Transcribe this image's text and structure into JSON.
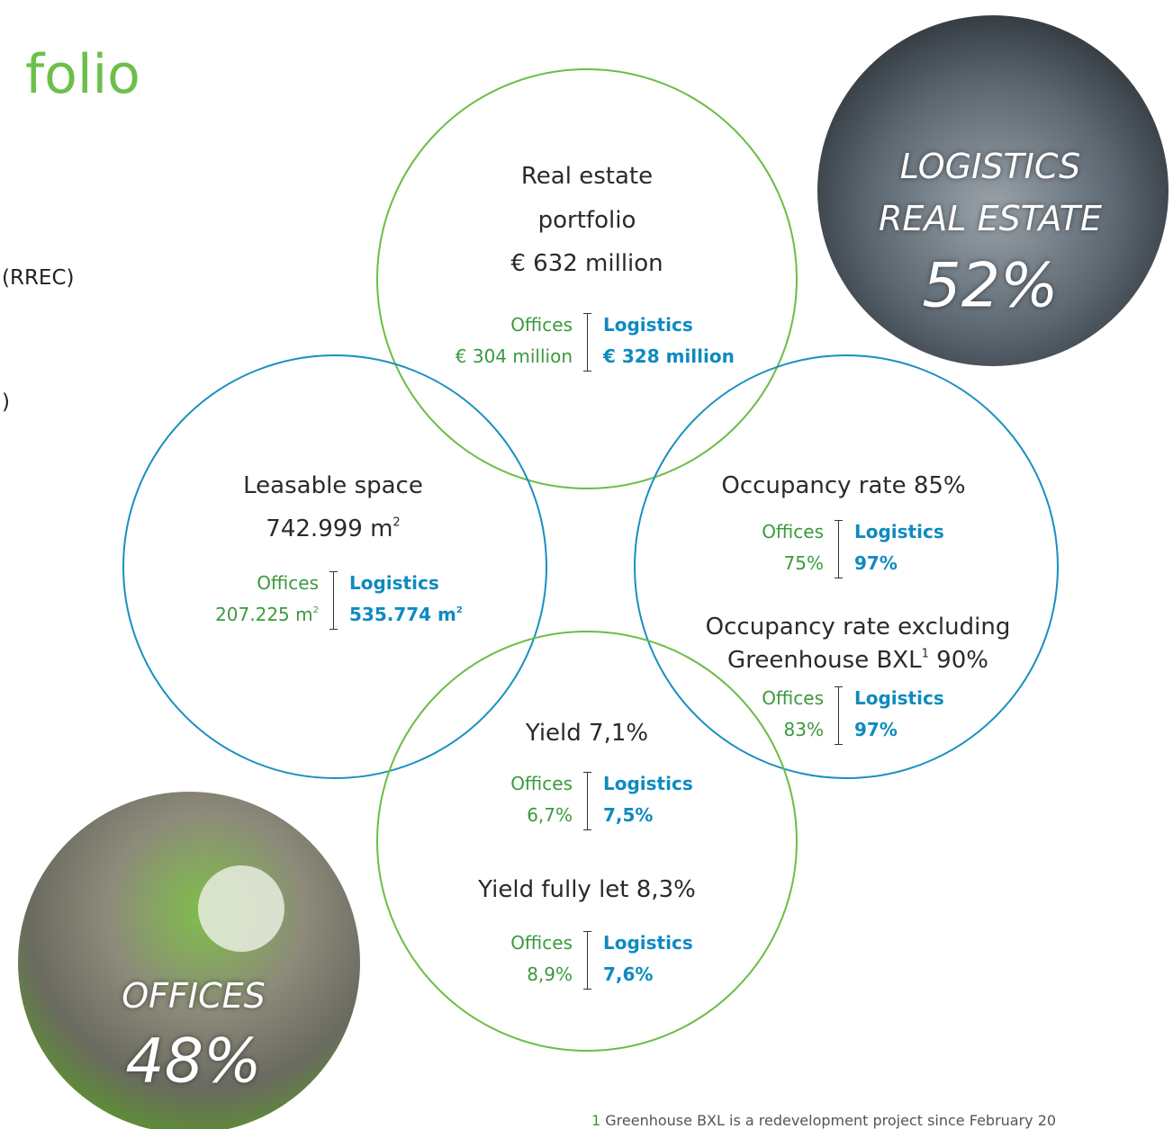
{
  "header": {
    "title": "folio",
    "lines": [
      "(RREC)",
      ")"
    ]
  },
  "photos": [
    {
      "lines": [
        "LOGISTICS",
        "REAL ESTATE"
      ],
      "share": "52%"
    },
    {
      "lines": [
        "OFFICES"
      ],
      "share": "48%"
    }
  ],
  "blocks": [
    {
      "lines": [
        {
          "text": "Real estate"
        },
        {
          "text": "portfolio"
        },
        {
          "text": "€ 632 million"
        }
      ],
      "split": {
        "offices": {
          "label": "Offices",
          "value": "€ 304 million"
        },
        "logistics": {
          "label": "Logistics",
          "value": "€ 328 million"
        }
      }
    },
    {
      "lines": [
        {
          "text": "Leasable space"
        },
        {
          "text": "742.999 m",
          "sup": "2"
        }
      ],
      "split": {
        "offices": {
          "label": "Offices",
          "value": "207.225 m",
          "sup": "2"
        },
        "logistics": {
          "label": "Logistics",
          "value": "535.774 m",
          "sup": "2"
        }
      }
    },
    {
      "lines": [
        {
          "text": "Occupancy rate 85%"
        }
      ],
      "split": {
        "offices": {
          "label": "Offices",
          "value": "75%"
        },
        "logistics": {
          "label": "Logistics",
          "value": "97%"
        }
      }
    },
    {
      "lines": [
        {
          "text": "Occupancy rate excluding"
        },
        {
          "text": "Greenhouse BXL",
          "sup": "1",
          "after": " 90%"
        }
      ],
      "split": {
        "offices": {
          "label": "Offices",
          "value": "83%"
        },
        "logistics": {
          "label": "Logistics",
          "value": "97%"
        }
      }
    },
    {
      "lines": [
        {
          "text": "Yield 7,1%"
        }
      ],
      "split": {
        "offices": {
          "label": "Offices",
          "value": "6,7%"
        },
        "logistics": {
          "label": "Logistics",
          "value": "7,5%"
        }
      }
    },
    {
      "lines": [
        {
          "text": "Yield fully let 8,3%"
        }
      ],
      "split": {
        "offices": {
          "label": "Offices",
          "value": "8,9%"
        },
        "logistics": {
          "label": "Logistics",
          "value": "7,6%"
        }
      }
    }
  ],
  "footnote": {
    "number": "1",
    "text": "Greenhouse BXL is a redevelopment project since February 20"
  }
}
